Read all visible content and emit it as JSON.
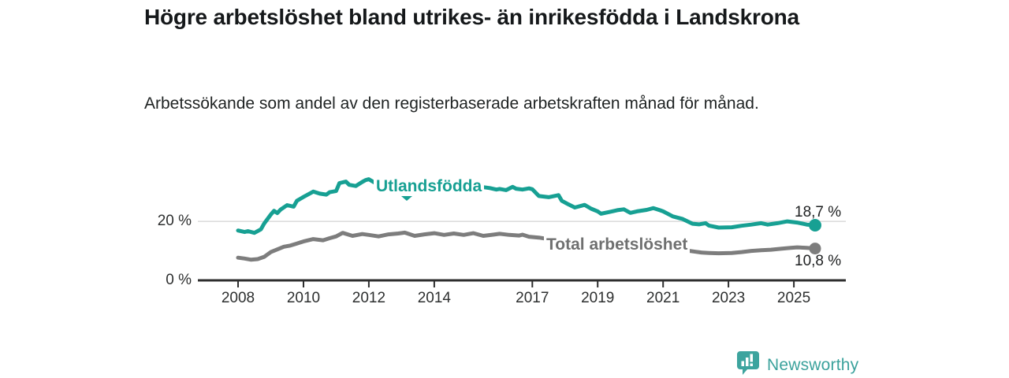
{
  "header": {
    "title": "Högre arbetslöshet bland utrikes- än inrikesfödda i Landskrona",
    "subtitle": "Arbetssökande som andel av den registerbaserade arbetskraften månad för månad."
  },
  "chart_data": {
    "type": "line",
    "title": "Högre arbetslöshet bland utrikes- än inrikesfödda i Landskrona",
    "subtitle": "Arbetssökande som andel av den registerbaserade arbetskraften månad för månad.",
    "unit": "%",
    "xlim": [
      2006.77,
      2026.59
    ],
    "ylim": [
      0,
      39
    ],
    "grid": "horizontal-only",
    "legend_position": "inline-labels",
    "y_gridlines": [
      20
    ],
    "x_ticks": [
      {
        "value": 2008,
        "label": "2008"
      },
      {
        "value": 2010,
        "label": "2010"
      },
      {
        "value": 2012,
        "label": "2012"
      },
      {
        "value": 2014,
        "label": "2014"
      },
      {
        "value": 2017,
        "label": "2017"
      },
      {
        "value": 2019,
        "label": "2019"
      },
      {
        "value": 2021,
        "label": "2021"
      },
      {
        "value": 2023,
        "label": "2023"
      },
      {
        "value": 2025,
        "label": "2025"
      }
    ],
    "y_ticks": [
      {
        "value": 0,
        "label": "0 %"
      },
      {
        "value": 20,
        "label": "20 %"
      }
    ],
    "colors": {
      "axis": "#2e2e2e",
      "grid": "#d9d9d9",
      "tick_text": "#2d2f2f"
    },
    "series": [
      {
        "name": "Utlandsfödda",
        "color": "#17a093",
        "end_value": 18.7,
        "end_label": "18,7 %",
        "points": [
          [
            2008.0,
            16.9
          ],
          [
            2008.2,
            16.4
          ],
          [
            2008.3,
            16.7
          ],
          [
            2008.5,
            16.1
          ],
          [
            2008.7,
            17.3
          ],
          [
            2008.8,
            19.3
          ],
          [
            2009.0,
            22.3
          ],
          [
            2009.1,
            23.6
          ],
          [
            2009.2,
            22.8
          ],
          [
            2009.3,
            24.0
          ],
          [
            2009.5,
            25.5
          ],
          [
            2009.7,
            25.0
          ],
          [
            2009.8,
            27.0
          ],
          [
            2010.0,
            28.3
          ],
          [
            2010.2,
            29.5
          ],
          [
            2010.3,
            30.1
          ],
          [
            2010.5,
            29.4
          ],
          [
            2010.7,
            29.1
          ],
          [
            2010.8,
            29.9
          ],
          [
            2011.0,
            30.3
          ],
          [
            2011.1,
            33.0
          ],
          [
            2011.3,
            33.5
          ],
          [
            2011.4,
            32.4
          ],
          [
            2011.6,
            32.0
          ],
          [
            2011.8,
            33.4
          ],
          [
            2011.9,
            34.0
          ],
          [
            2012.0,
            34.3
          ],
          [
            2012.2,
            33.0
          ],
          [
            2012.3,
            31.5
          ],
          [
            2012.5,
            30.9
          ],
          [
            2012.7,
            31.6
          ],
          [
            2012.8,
            32.4
          ],
          [
            2013.0,
            33.0
          ],
          [
            2013.2,
            33.5
          ],
          [
            2013.3,
            32.8
          ],
          [
            2013.5,
            33.2
          ],
          [
            2013.7,
            32.6
          ],
          [
            2013.8,
            33.0
          ],
          [
            2014.0,
            33.4
          ],
          [
            2014.3,
            32.7
          ],
          [
            2014.5,
            33.1
          ],
          [
            2014.8,
            32.5
          ],
          [
            2015.0,
            32.9
          ],
          [
            2015.3,
            32.2
          ],
          [
            2015.5,
            31.6
          ],
          [
            2015.7,
            31.3
          ],
          [
            2015.9,
            30.8
          ],
          [
            2016.0,
            31.0
          ],
          [
            2016.2,
            30.6
          ],
          [
            2016.4,
            31.7
          ],
          [
            2016.5,
            31.1
          ],
          [
            2016.7,
            30.8
          ],
          [
            2016.9,
            31.2
          ],
          [
            2017.0,
            30.9
          ],
          [
            2017.2,
            28.6
          ],
          [
            2017.5,
            28.2
          ],
          [
            2017.8,
            28.9
          ],
          [
            2017.9,
            27.0
          ],
          [
            2018.1,
            25.8
          ],
          [
            2018.3,
            24.7
          ],
          [
            2018.6,
            25.6
          ],
          [
            2018.8,
            24.3
          ],
          [
            2019.0,
            23.4
          ],
          [
            2019.1,
            22.6
          ],
          [
            2019.4,
            23.3
          ],
          [
            2019.6,
            23.8
          ],
          [
            2019.8,
            24.1
          ],
          [
            2020.0,
            22.9
          ],
          [
            2020.2,
            23.4
          ],
          [
            2020.5,
            23.9
          ],
          [
            2020.7,
            24.5
          ],
          [
            2020.9,
            23.8
          ],
          [
            2021.0,
            23.4
          ],
          [
            2021.3,
            21.7
          ],
          [
            2021.6,
            20.8
          ],
          [
            2021.9,
            19.2
          ],
          [
            2022.1,
            19.0
          ],
          [
            2022.3,
            19.4
          ],
          [
            2022.4,
            18.6
          ],
          [
            2022.7,
            17.9
          ],
          [
            2023.1,
            18.0
          ],
          [
            2023.4,
            18.5
          ],
          [
            2023.7,
            18.9
          ],
          [
            2024.0,
            19.4
          ],
          [
            2024.2,
            18.9
          ],
          [
            2024.5,
            19.4
          ],
          [
            2024.8,
            20.0
          ],
          [
            2025.1,
            19.6
          ],
          [
            2025.4,
            18.9
          ],
          [
            2025.65,
            18.7
          ]
        ]
      },
      {
        "name": "Total arbetslöshet",
        "color": "#7d7d7d",
        "end_value": 10.8,
        "end_label": "10,8 %",
        "points": [
          [
            2008.0,
            7.7
          ],
          [
            2008.2,
            7.4
          ],
          [
            2008.4,
            7.0
          ],
          [
            2008.6,
            7.2
          ],
          [
            2008.8,
            8.0
          ],
          [
            2009.0,
            9.6
          ],
          [
            2009.2,
            10.5
          ],
          [
            2009.4,
            11.4
          ],
          [
            2009.6,
            11.8
          ],
          [
            2009.8,
            12.5
          ],
          [
            2010.0,
            13.2
          ],
          [
            2010.3,
            14.0
          ],
          [
            2010.6,
            13.6
          ],
          [
            2010.8,
            14.3
          ],
          [
            2011.0,
            14.9
          ],
          [
            2011.2,
            16.1
          ],
          [
            2011.5,
            15.1
          ],
          [
            2011.8,
            15.7
          ],
          [
            2012.0,
            15.4
          ],
          [
            2012.3,
            14.9
          ],
          [
            2012.6,
            15.6
          ],
          [
            2012.9,
            15.9
          ],
          [
            2013.1,
            16.2
          ],
          [
            2013.4,
            15.1
          ],
          [
            2013.7,
            15.6
          ],
          [
            2014.0,
            16.0
          ],
          [
            2014.3,
            15.4
          ],
          [
            2014.6,
            15.9
          ],
          [
            2014.9,
            15.4
          ],
          [
            2015.2,
            16.0
          ],
          [
            2015.5,
            15.1
          ],
          [
            2015.8,
            15.5
          ],
          [
            2016.0,
            15.8
          ],
          [
            2016.3,
            15.4
          ],
          [
            2016.6,
            15.2
          ],
          [
            2016.7,
            15.5
          ],
          [
            2016.9,
            14.8
          ],
          [
            2017.0,
            14.7
          ],
          [
            2017.2,
            14.5
          ],
          [
            2017.6,
            13.8
          ],
          [
            2018.0,
            13.2
          ],
          [
            2018.5,
            12.6
          ],
          [
            2019.0,
            12.2
          ],
          [
            2019.5,
            11.9
          ],
          [
            2020.0,
            12.1
          ],
          [
            2020.4,
            12.4
          ],
          [
            2020.8,
            11.8
          ],
          [
            2021.2,
            11.0
          ],
          [
            2021.6,
            10.3
          ],
          [
            2022.0,
            9.7
          ],
          [
            2022.2,
            9.4
          ],
          [
            2022.4,
            9.3
          ],
          [
            2022.7,
            9.2
          ],
          [
            2023.1,
            9.3
          ],
          [
            2023.4,
            9.6
          ],
          [
            2023.7,
            10.0
          ],
          [
            2024.0,
            10.2
          ],
          [
            2024.3,
            10.4
          ],
          [
            2024.6,
            10.7
          ],
          [
            2024.9,
            11.0
          ],
          [
            2025.1,
            11.2
          ],
          [
            2025.4,
            11.0
          ],
          [
            2025.65,
            10.8
          ]
        ]
      }
    ]
  },
  "branding": {
    "name": "Newsworthy",
    "color": "#3ba29c",
    "icon": "speech-bubble-bar-chart-icon"
  }
}
